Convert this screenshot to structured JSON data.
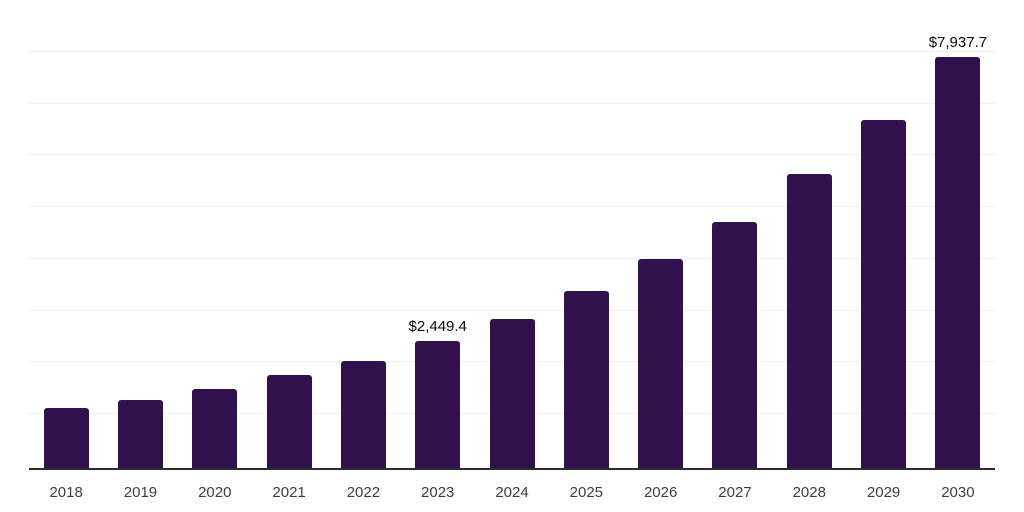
{
  "chart_data": {
    "type": "bar",
    "title": "",
    "xlabel": "",
    "ylabel": "",
    "categories": [
      "2018",
      "2019",
      "2020",
      "2021",
      "2022",
      "2023",
      "2024",
      "2025",
      "2026",
      "2027",
      "2028",
      "2029",
      "2030"
    ],
    "values": [
      1160,
      1320,
      1520,
      1790,
      2075,
      2449.4,
      2875,
      3420,
      4045,
      4760,
      5670,
      6730,
      7937.7
    ],
    "data_labels": [
      "",
      "",
      "",
      "",
      "",
      "$2,449.4",
      "",
      "",
      "",
      "",
      "",
      "",
      "$7,937.7"
    ],
    "ylim": [
      0,
      9000
    ],
    "gridline_interval": 1000,
    "grid": true,
    "legend": false,
    "y_axis_tick_labels_visible": false,
    "colors": {
      "bar": "#31114D",
      "axis_line": "#2b2b2b",
      "gridline": "#f0f0f0",
      "value_label": "#0a0a0a",
      "x_tick_label": "#3d3d3d",
      "background": "#ffffff"
    }
  }
}
